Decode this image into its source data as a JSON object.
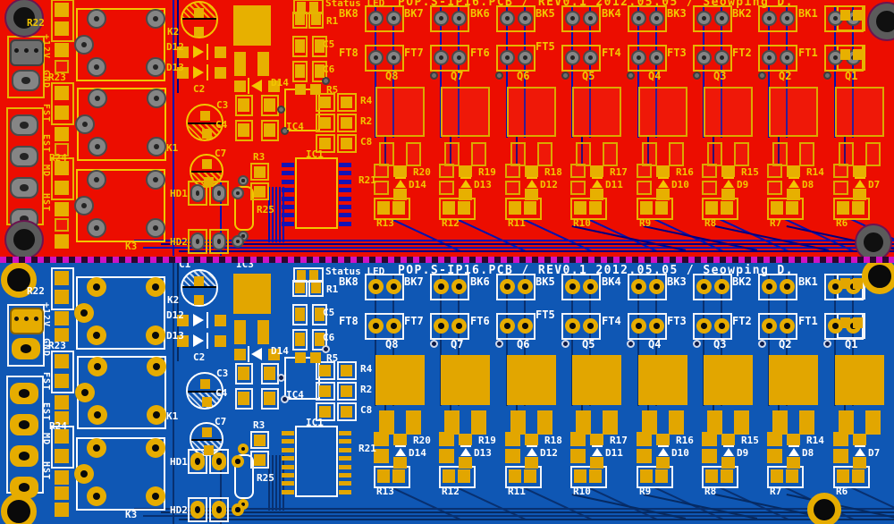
{
  "silkscreen": {
    "title": "POP.S-IP16.PCB / REV0.1 2012.05.05 / Seowping D.",
    "status_led": "Status LED",
    "left_connector_labels": [
      "+12V",
      "GND",
      "FST",
      "EST",
      "MD",
      "HST"
    ],
    "left_resistors": [
      "R22",
      "R23",
      "R24"
    ],
    "relay_labels": [
      "K2",
      "K1",
      "K3"
    ],
    "capacitor_labels": [
      "C1",
      "C2",
      "C3",
      "C4",
      "C5",
      "C6",
      "C7",
      "C8"
    ],
    "ic_labels": [
      "IC1",
      "IC3",
      "IC4"
    ],
    "small_parts": {
      "r1": "R1",
      "r2": "R2",
      "r3": "R3",
      "r4": "R4",
      "r5": "R5",
      "r21": "R21",
      "r25": "R25",
      "hd1": "HD1",
      "hd2": "HD2",
      "d12": "D12",
      "d13": "D13",
      "d14_mid": "D14"
    },
    "channels": [
      {
        "bk": "BK8",
        "ft": "FT8",
        "q": "Q8",
        "r_top": "R20",
        "d": "D14",
        "r_bot": "R13"
      },
      {
        "bk": "BK7",
        "ft": "FT7",
        "q": "Q7",
        "r_top": "R19",
        "d": "D13",
        "r_bot": "R12"
      },
      {
        "bk": "BK6",
        "ft": "FT6",
        "q": "Q6",
        "r_top": "R18",
        "d": "D12",
        "r_bot": "R11"
      },
      {
        "bk": "BK5",
        "ft": "FT5",
        "q": "Q5",
        "r_top": "R17",
        "d": "D11",
        "r_bot": "R10"
      },
      {
        "bk": "BK4",
        "ft": "FT4",
        "q": "Q4",
        "r_top": "R16",
        "d": "D10",
        "r_bot": "R9"
      },
      {
        "bk": "BK3",
        "ft": "FT3",
        "q": "Q3",
        "r_top": "R15",
        "d": "D9",
        "r_bot": "R8"
      },
      {
        "bk": "BK2",
        "ft": "FT2",
        "q": "Q2",
        "r_top": "R14",
        "d": "D8",
        "r_bot": "R7"
      },
      {
        "bk": "BK1",
        "ft": "FT1",
        "q": "Q1",
        "r_top": "",
        "d": "D7",
        "r_bot": "R6"
      }
    ]
  },
  "colors": {
    "top_board": {
      "background": "#ec0d00",
      "silkscreen": "#f2c600",
      "traces": "#0013b0",
      "pad_outline": "#e7b400",
      "through_hole_pads": "#858585"
    },
    "bottom_board": {
      "background": "#0f57b4",
      "silkscreen": "#ffffff",
      "traces": "#083070",
      "pads": "#e2a600"
    },
    "board_outline": "#cf12c4"
  }
}
